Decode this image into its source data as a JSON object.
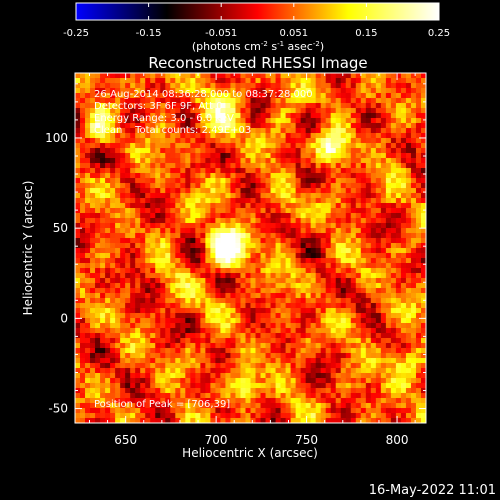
{
  "chart_data": {
    "type": "heatmap",
    "title": "Reconstructed RHESSI Image",
    "xlabel": "Heliocentric X (arcsec)",
    "ylabel": "Heliocentric Y (arcsec)",
    "xlim": [
      622,
      816
    ],
    "ylim": [
      -58,
      136
    ],
    "xticks": [
      650,
      700,
      750,
      800
    ],
    "yticks": [
      -50,
      0,
      50,
      100
    ],
    "grid": false,
    "colorbar": {
      "location": "top",
      "range": [
        -0.25,
        0.25
      ],
      "ticks": [
        "-0.25",
        "-0.15",
        "-0.051",
        "0.051",
        "0.15",
        "0.25"
      ],
      "label_parts": [
        "(photons cm",
        "-2",
        " s",
        "-1",
        " asec",
        "-2",
        ")"
      ],
      "colormap": [
        "#0000ff",
        "#000000",
        "#ff0000",
        "#ffff00",
        "#ffffff"
      ]
    },
    "annotations": [
      "26-Aug-2014 08:36:28.000 to 08:37:28.000",
      "Detectors: 3F 6F 9F, Att 0",
      "Energy Range: 3.0 - 6.0 keV",
      "Clean    Total counts: 2.49E+03"
    ],
    "peak_label": "Position of Peak = [706,39]",
    "peak": [
      706,
      39
    ],
    "sources": [
      {
        "x": 706,
        "y": 39,
        "peak": 0.25,
        "width": 9
      },
      {
        "x": 764,
        "y": 95,
        "peak": 0.17,
        "width": 7
      },
      {
        "x": 636,
        "y": 104,
        "peak": 0.12,
        "width": 6
      },
      {
        "x": 716,
        "y": -40,
        "peak": 0.14,
        "width": 7
      },
      {
        "x": 805,
        "y": -25,
        "peak": 0.11,
        "width": 9
      },
      {
        "x": 705,
        "y": 118,
        "peak": 0.1,
        "width": 11
      }
    ]
  },
  "footer": {
    "timestamp": "16-May-2022 11:01"
  }
}
